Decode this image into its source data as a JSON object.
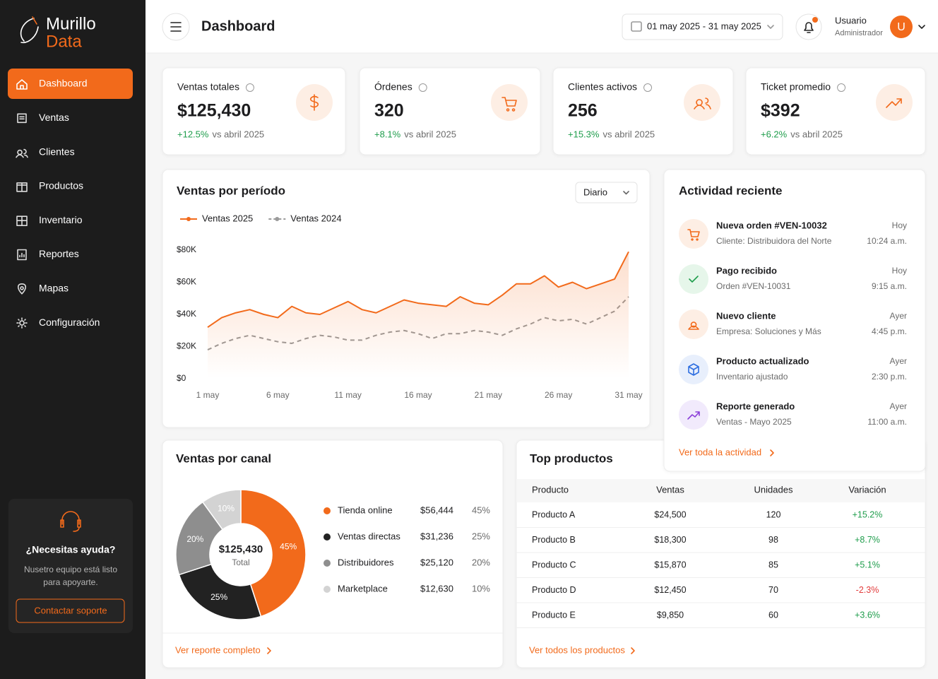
{
  "sidebar": {
    "brand": {
      "line1": "Murillo",
      "line2": "Data"
    },
    "nav": [
      "Dashboard",
      "Ventas",
      "Clientes",
      "Productos",
      "Inventario",
      "Reportes",
      "Mapas",
      "Configuración"
    ],
    "help": {
      "title": "¿Necesitas ayuda?",
      "text_line1": "Nusetro equipo está listo",
      "text_line2": "para apoyarte.",
      "button": "Contactar soporte"
    }
  },
  "header": {
    "title": "Dashboard",
    "date_range": "01 may 2025 - 31 may 2025",
    "user": {
      "name": "Usuario",
      "role": "Administrador",
      "initial": "U"
    }
  },
  "kpis": [
    {
      "label": "Ventas totales",
      "value": "$125,430",
      "change": "+12.5%",
      "compare": "vs abril 2025"
    },
    {
      "label": "Órdenes",
      "value": "320",
      "change": "+8.1%",
      "compare": "vs abril 2025"
    },
    {
      "label": "Clientes activos",
      "value": "256",
      "change": "+15.3%",
      "compare": "vs abril 2025"
    },
    {
      "label": "Ticket promedio",
      "value": "$392",
      "change": "+6.2%",
      "compare": "vs abril 2025"
    }
  ],
  "chart_data": [
    {
      "type": "line",
      "title": "Ventas por período",
      "period": "Diario",
      "categories": [
        "1 may",
        null,
        null,
        null,
        null,
        "6 may",
        null,
        null,
        null,
        null,
        "11 may",
        null,
        null,
        null,
        null,
        "16 may",
        null,
        null,
        null,
        null,
        "21 may",
        null,
        null,
        null,
        null,
        "26 may",
        null,
        null,
        null,
        null,
        "31 may"
      ],
      "series": [
        {
          "name": "Ventas 2025",
          "color": "#f26a1b",
          "dashed": false,
          "values": [
            32000,
            38000,
            41000,
            43000,
            40000,
            38000,
            45000,
            41000,
            40000,
            44000,
            48000,
            43000,
            41000,
            45000,
            49000,
            47000,
            46000,
            45000,
            51000,
            47000,
            46000,
            52000,
            59000,
            59000,
            64000,
            57000,
            60000,
            56000,
            59000,
            62000,
            79000
          ]
        },
        {
          "name": "Ventas 2024",
          "color": "#9a9a9a",
          "dashed": true,
          "values": [
            18000,
            22000,
            25000,
            27000,
            25000,
            23000,
            22000,
            25000,
            27000,
            26000,
            24000,
            24000,
            27000,
            29000,
            30000,
            28000,
            25000,
            28000,
            28000,
            30000,
            29000,
            27000,
            31000,
            34000,
            38000,
            36000,
            37000,
            34000,
            38000,
            42000,
            51000
          ]
        }
      ],
      "ylim": [
        0,
        80000
      ],
      "yticks": [
        {
          "value": 0,
          "label": "$0"
        },
        {
          "value": 20000,
          "label": "$20K"
        },
        {
          "value": 40000,
          "label": "$40K"
        },
        {
          "value": 60000,
          "label": "$60K"
        },
        {
          "value": 80000,
          "label": "$80K"
        }
      ],
      "grid": false
    },
    {
      "type": "donut",
      "title": "Ventas por canal",
      "center_value": "$125,430",
      "center_label": "Total",
      "categories": [
        "Tienda online",
        "Ventas directas",
        "Distribuidores",
        "Marketplace"
      ],
      "values": [
        45,
        25,
        20,
        10
      ],
      "value_labels": [
        "45%",
        "25%",
        "20%",
        "10%"
      ],
      "amounts": [
        "$56,444",
        "$31,236",
        "$25,120",
        "$12,630"
      ],
      "colors": [
        "#f26a1b",
        "#222222",
        "#8e8e8e",
        "#d3d3d3"
      ]
    }
  ],
  "top_products": {
    "title": "Top productos",
    "columns": [
      "Producto",
      "Ventas",
      "Unidades",
      "Variación"
    ],
    "rows": [
      [
        "Producto A",
        "$24,500",
        "120",
        "+15.2%"
      ],
      [
        "Producto B",
        "$18,300",
        "98",
        "+8.7%"
      ],
      [
        "Producto C",
        "$15,870",
        "85",
        "+5.1%"
      ],
      [
        "Producto D",
        "$12,450",
        "70",
        "-2.3%"
      ],
      [
        "Producto E",
        "$9,850",
        "60",
        "+3.6%"
      ]
    ],
    "link": "Ver todos los productos"
  },
  "channel_link": "Ver reporte completo",
  "activity": {
    "title": "Actividad reciente",
    "items": [
      {
        "title": "Nueva orden #VEN-10032",
        "subtitle": "Cliente: Distribuidora del Norte",
        "day": "Hoy",
        "time": "10:24 a.m."
      },
      {
        "title": "Pago recibido",
        "subtitle": "Orden #VEN-10031",
        "day": "Hoy",
        "time": "9:15 a.m."
      },
      {
        "title": "Nuevo cliente",
        "subtitle": "Empresa: Soluciones y Más",
        "day": "Ayer",
        "time": "4:45 p.m."
      },
      {
        "title": "Producto actualizado",
        "subtitle": "Inventario ajustado",
        "day": "Ayer",
        "time": "2:30 p.m."
      },
      {
        "title": "Reporte generado",
        "subtitle": "Ventas - Mayo 2025",
        "day": "Ayer",
        "time": "11:00 a.m."
      }
    ],
    "link": "Ver toda la actividad"
  }
}
